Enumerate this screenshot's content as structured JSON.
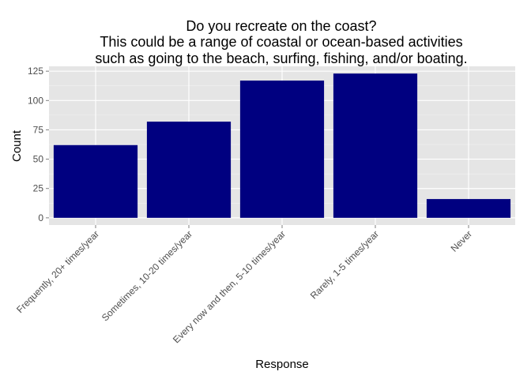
{
  "chart_data": {
    "type": "bar",
    "title_lines": [
      "Do you recreate on the coast?",
      "This could be a range of coastal or ocean-based activities",
      "such as going to the beach, surfing, fishing, and/or boating."
    ],
    "xlabel": "Response",
    "ylabel": "Count",
    "categories": [
      "Frequently, 20+ times/year",
      "Sometimes, 10-20 times/year",
      "Every now and then, 5-10 times/year",
      "Rarely, 1-5 times/year",
      "Never"
    ],
    "values": [
      62,
      82,
      117,
      123,
      16
    ],
    "yticks": [
      0,
      25,
      50,
      75,
      100,
      125
    ],
    "ylim": [
      -6.15,
      129.15
    ],
    "grid": true,
    "legend": "none",
    "colors": {
      "bar": "#000080",
      "panel": "#e5e5e5",
      "grid_major": "#ffffff",
      "grid_minor": "#f2f2f2",
      "tick_text": "#4d4d4d",
      "text": "#000000"
    }
  }
}
